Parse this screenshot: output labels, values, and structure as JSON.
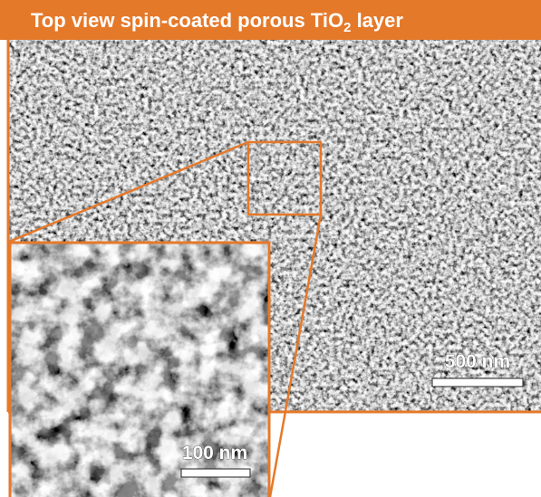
{
  "title": {
    "text": "Top view spin-coated porous TiO",
    "subscript": "2",
    "suffix": " layer"
  },
  "scale_bars": {
    "main": "500 nm",
    "inset": "100 nm"
  }
}
